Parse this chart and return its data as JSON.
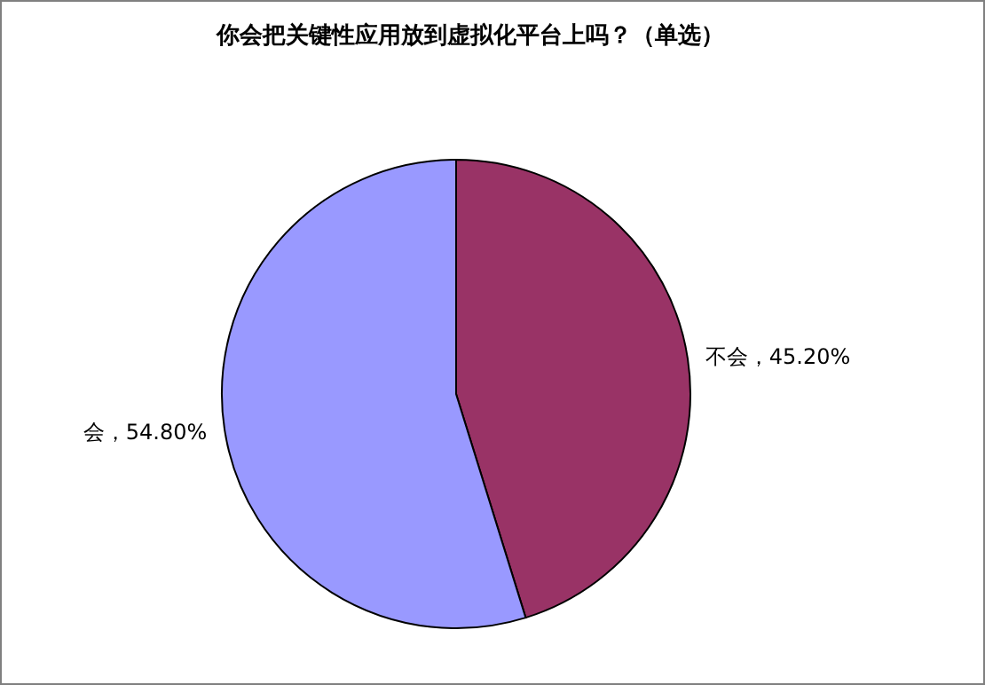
{
  "chart_data": {
    "type": "pie",
    "title": "你会把关键性应用放到虚拟化平台上吗？（单选）",
    "categories": [
      "不会",
      "会"
    ],
    "values": [
      45.2,
      54.8
    ],
    "value_labels": [
      "45.20%",
      "54.80%"
    ],
    "colors": [
      "#993366",
      "#9999ff"
    ],
    "legend": false
  }
}
